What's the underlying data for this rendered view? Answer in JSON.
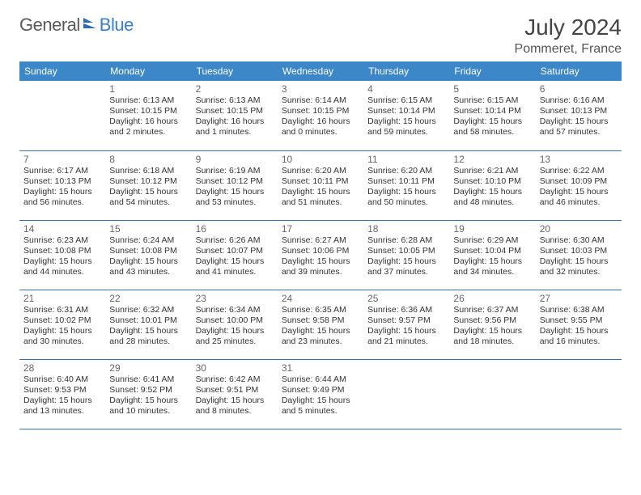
{
  "brand": {
    "part1": "General",
    "part2": "Blue"
  },
  "title": "July 2024",
  "location": "Pommeret, France",
  "colors": {
    "header_bg": "#3b87c8",
    "header_text": "#ffffff",
    "row_border": "#3b6fa0",
    "brand_grey": "#5a5a5a",
    "brand_blue": "#3b7fc4",
    "text": "#333333",
    "page_bg": "#ffffff"
  },
  "weekdays": [
    "Sunday",
    "Monday",
    "Tuesday",
    "Wednesday",
    "Thursday",
    "Friday",
    "Saturday"
  ],
  "weeks": [
    [
      null,
      {
        "n": "1",
        "sr": "6:13 AM",
        "ss": "10:15 PM",
        "dl": "16 hours and 2 minutes."
      },
      {
        "n": "2",
        "sr": "6:13 AM",
        "ss": "10:15 PM",
        "dl": "16 hours and 1 minutes."
      },
      {
        "n": "3",
        "sr": "6:14 AM",
        "ss": "10:15 PM",
        "dl": "16 hours and 0 minutes."
      },
      {
        "n": "4",
        "sr": "6:15 AM",
        "ss": "10:14 PM",
        "dl": "15 hours and 59 minutes."
      },
      {
        "n": "5",
        "sr": "6:15 AM",
        "ss": "10:14 PM",
        "dl": "15 hours and 58 minutes."
      },
      {
        "n": "6",
        "sr": "6:16 AM",
        "ss": "10:13 PM",
        "dl": "15 hours and 57 minutes."
      }
    ],
    [
      {
        "n": "7",
        "sr": "6:17 AM",
        "ss": "10:13 PM",
        "dl": "15 hours and 56 minutes."
      },
      {
        "n": "8",
        "sr": "6:18 AM",
        "ss": "10:12 PM",
        "dl": "15 hours and 54 minutes."
      },
      {
        "n": "9",
        "sr": "6:19 AM",
        "ss": "10:12 PM",
        "dl": "15 hours and 53 minutes."
      },
      {
        "n": "10",
        "sr": "6:20 AM",
        "ss": "10:11 PM",
        "dl": "15 hours and 51 minutes."
      },
      {
        "n": "11",
        "sr": "6:20 AM",
        "ss": "10:11 PM",
        "dl": "15 hours and 50 minutes."
      },
      {
        "n": "12",
        "sr": "6:21 AM",
        "ss": "10:10 PM",
        "dl": "15 hours and 48 minutes."
      },
      {
        "n": "13",
        "sr": "6:22 AM",
        "ss": "10:09 PM",
        "dl": "15 hours and 46 minutes."
      }
    ],
    [
      {
        "n": "14",
        "sr": "6:23 AM",
        "ss": "10:08 PM",
        "dl": "15 hours and 44 minutes."
      },
      {
        "n": "15",
        "sr": "6:24 AM",
        "ss": "10:08 PM",
        "dl": "15 hours and 43 minutes."
      },
      {
        "n": "16",
        "sr": "6:26 AM",
        "ss": "10:07 PM",
        "dl": "15 hours and 41 minutes."
      },
      {
        "n": "17",
        "sr": "6:27 AM",
        "ss": "10:06 PM",
        "dl": "15 hours and 39 minutes."
      },
      {
        "n": "18",
        "sr": "6:28 AM",
        "ss": "10:05 PM",
        "dl": "15 hours and 37 minutes."
      },
      {
        "n": "19",
        "sr": "6:29 AM",
        "ss": "10:04 PM",
        "dl": "15 hours and 34 minutes."
      },
      {
        "n": "20",
        "sr": "6:30 AM",
        "ss": "10:03 PM",
        "dl": "15 hours and 32 minutes."
      }
    ],
    [
      {
        "n": "21",
        "sr": "6:31 AM",
        "ss": "10:02 PM",
        "dl": "15 hours and 30 minutes."
      },
      {
        "n": "22",
        "sr": "6:32 AM",
        "ss": "10:01 PM",
        "dl": "15 hours and 28 minutes."
      },
      {
        "n": "23",
        "sr": "6:34 AM",
        "ss": "10:00 PM",
        "dl": "15 hours and 25 minutes."
      },
      {
        "n": "24",
        "sr": "6:35 AM",
        "ss": "9:58 PM",
        "dl": "15 hours and 23 minutes."
      },
      {
        "n": "25",
        "sr": "6:36 AM",
        "ss": "9:57 PM",
        "dl": "15 hours and 21 minutes."
      },
      {
        "n": "26",
        "sr": "6:37 AM",
        "ss": "9:56 PM",
        "dl": "15 hours and 18 minutes."
      },
      {
        "n": "27",
        "sr": "6:38 AM",
        "ss": "9:55 PM",
        "dl": "15 hours and 16 minutes."
      }
    ],
    [
      {
        "n": "28",
        "sr": "6:40 AM",
        "ss": "9:53 PM",
        "dl": "15 hours and 13 minutes."
      },
      {
        "n": "29",
        "sr": "6:41 AM",
        "ss": "9:52 PM",
        "dl": "15 hours and 10 minutes."
      },
      {
        "n": "30",
        "sr": "6:42 AM",
        "ss": "9:51 PM",
        "dl": "15 hours and 8 minutes."
      },
      {
        "n": "31",
        "sr": "6:44 AM",
        "ss": "9:49 PM",
        "dl": "15 hours and 5 minutes."
      },
      null,
      null,
      null
    ]
  ]
}
